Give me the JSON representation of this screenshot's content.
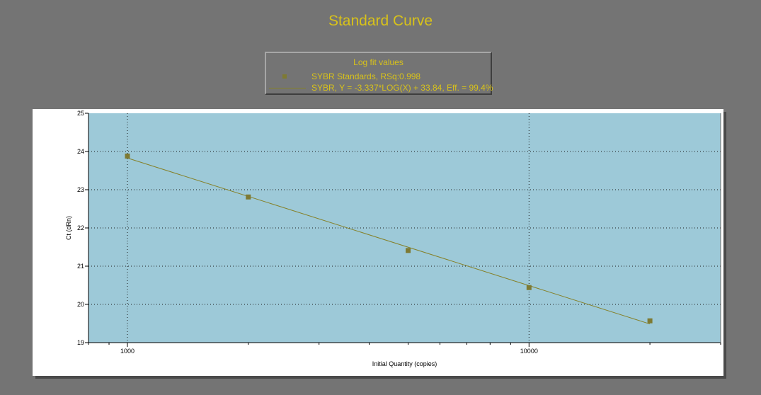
{
  "colors": {
    "background": "#747474",
    "title": "#d8c21a",
    "plot_area": "#9dc9d8",
    "series": "#7e7a33",
    "fit_line": "#85812a"
  },
  "chart_data": {
    "type": "scatter",
    "title": "Standard Curve",
    "xlabel": "Initial Quantity (copies)",
    "ylabel": "Ct (dRn)",
    "x_scale": "log",
    "xlim": [
      800,
      30000
    ],
    "ylim": [
      19,
      25
    ],
    "x_tick_labels": [
      {
        "value": 1000,
        "label": "1000"
      },
      {
        "value": 10000,
        "label": "10000"
      }
    ],
    "y_ticks": [
      19,
      20,
      21,
      22,
      23,
      24,
      25
    ],
    "grid": true,
    "legend": {
      "title": "Log fit values",
      "placement": "top-center",
      "entries": [
        "SYBR Standards, RSq:0.998",
        "SYBR, Y = -3.337*LOG(X) + 33.84, Eff. = 99.4%"
      ]
    },
    "series": [
      {
        "name": "SYBR Standards",
        "kind": "points",
        "x": [
          1000,
          2000,
          5000,
          10000,
          20000
        ],
        "y": [
          23.88,
          22.81,
          21.41,
          20.44,
          19.57
        ]
      }
    ],
    "fit": {
      "name": "SYBR",
      "slope": -3.337,
      "intercept": 33.84,
      "x_range": [
        1000,
        20000
      ]
    }
  }
}
